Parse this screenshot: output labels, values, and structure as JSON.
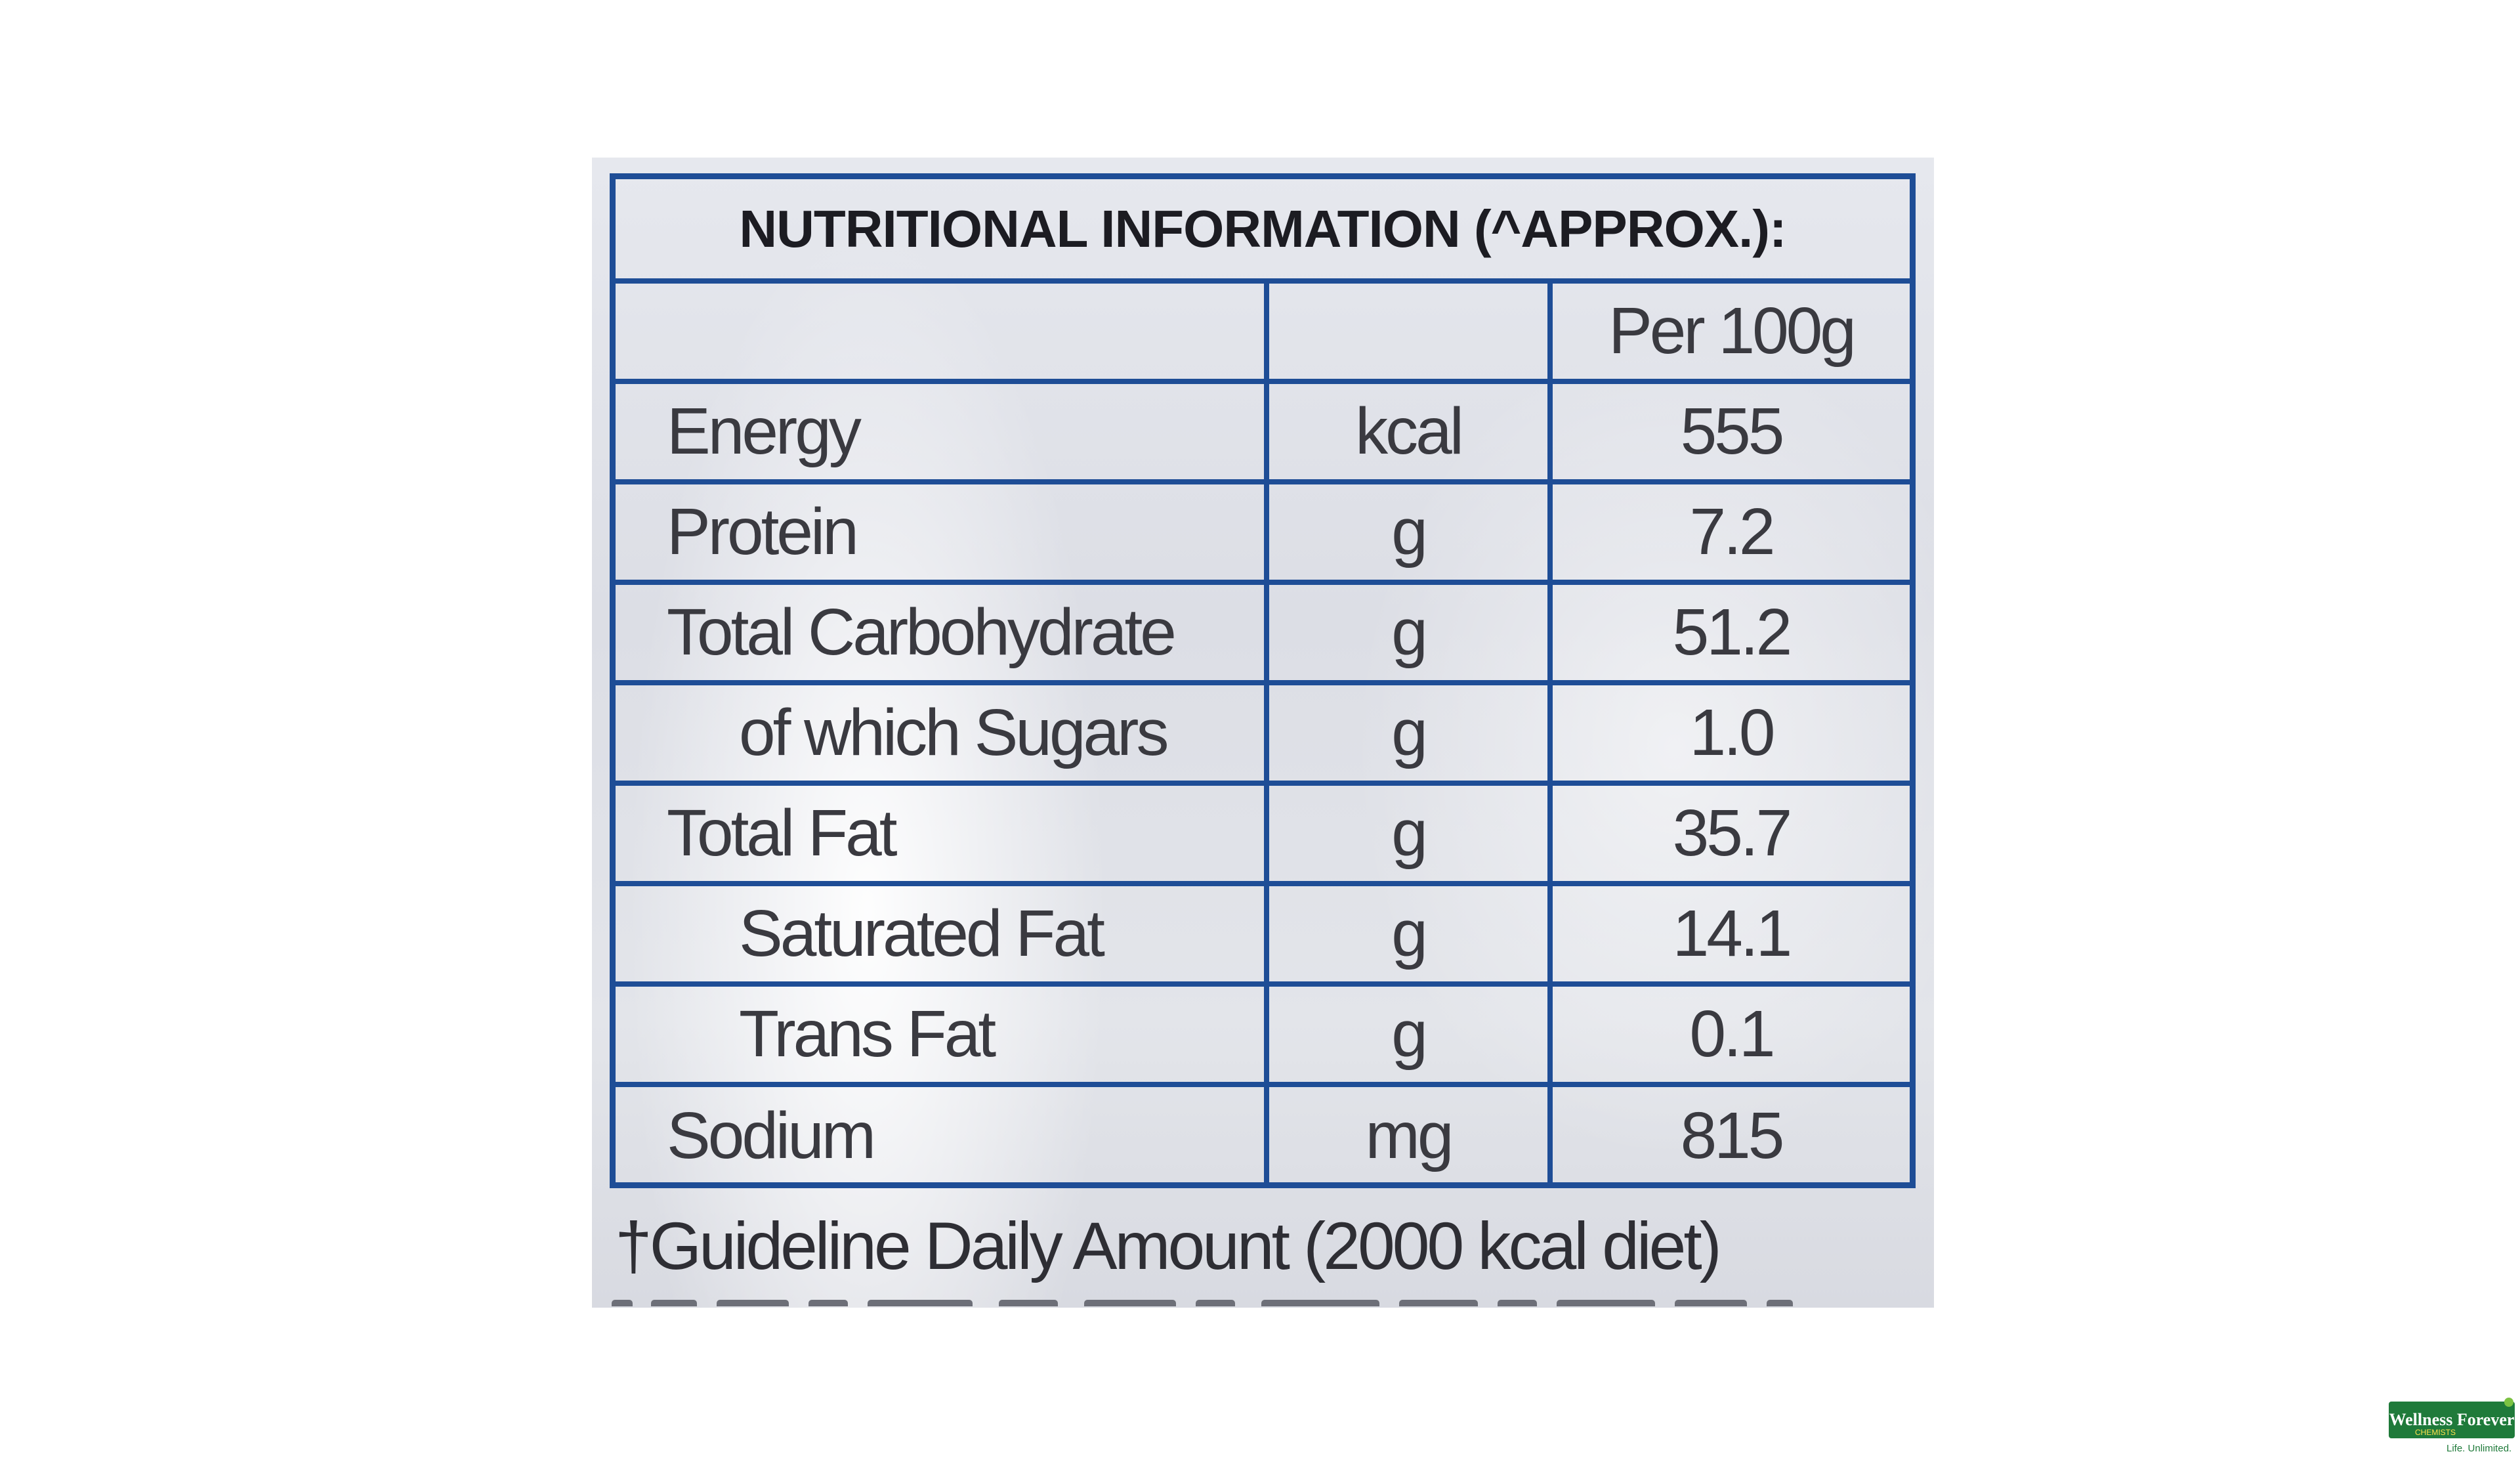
{
  "title": "NUTRITIONAL INFORMATION (^APPROX.):",
  "header": {
    "label": "",
    "unit": "",
    "value": "Per 100g"
  },
  "rows": [
    {
      "name": "Energy",
      "unit": "kcal",
      "value": "555"
    },
    {
      "name": "Protein",
      "unit": "g",
      "value": "7.2"
    },
    {
      "name": "Total Carbohydrate",
      "unit": "g",
      "value": "51.2"
    },
    {
      "name": "of which Sugars",
      "unit": "g",
      "value": "1.0"
    },
    {
      "name": "Total Fat",
      "unit": "g",
      "value": "35.7"
    },
    {
      "name": "Saturated Fat",
      "unit": "g",
      "value": "14.1"
    },
    {
      "name": "Trans Fat",
      "unit": "g",
      "value": "0.1"
    },
    {
      "name": "Sodium",
      "unit": "mg",
      "value": "815"
    }
  ],
  "footnote": "†Guideline Daily Amount (2000 kcal diet)",
  "colors": {
    "border": "#1e4d96",
    "logo_green": "#1f7a3a"
  },
  "watermark": {
    "name": "Wellness Forever",
    "sub": "CHEMISTS",
    "tagline": "Life. Unlimited."
  }
}
